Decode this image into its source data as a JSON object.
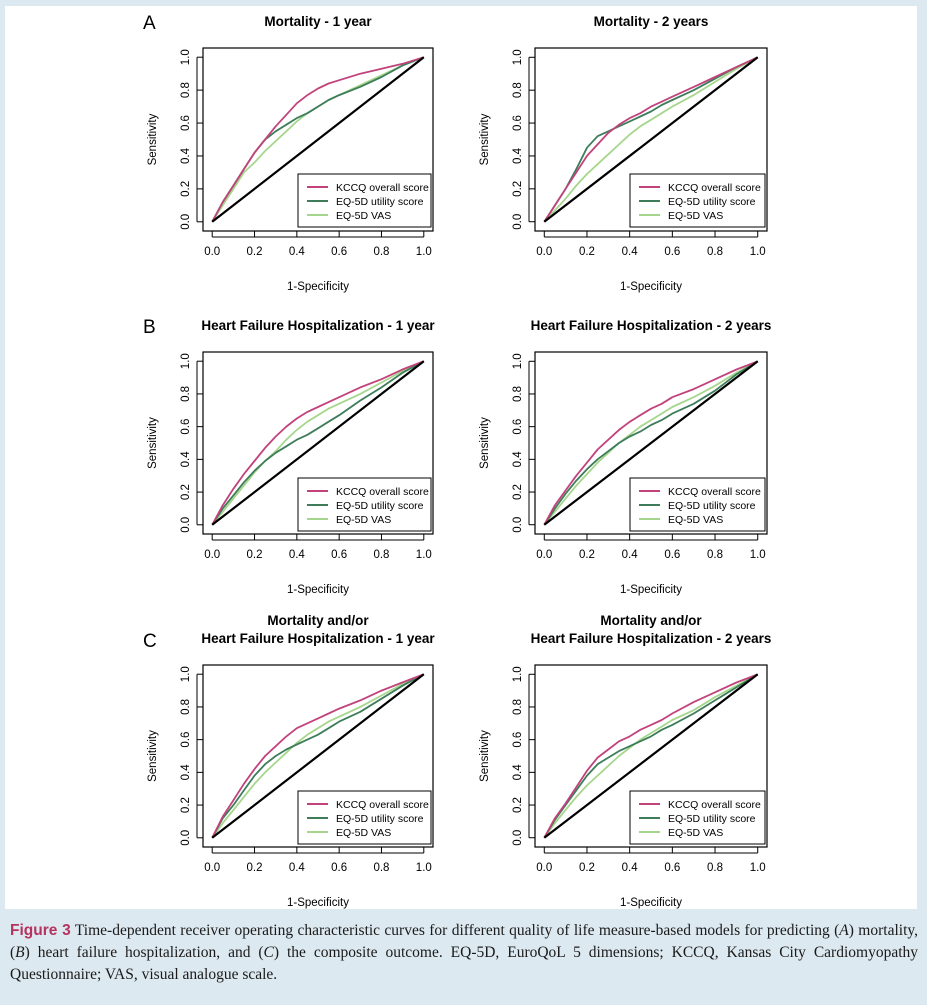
{
  "panel_letters": [
    "A",
    "B",
    "C"
  ],
  "legend_labels": [
    "KCCQ overall score",
    "EQ-5D utility score",
    "EQ-5D VAS"
  ],
  "series_colors": {
    "KCCQ overall score": "#c2427c",
    "EQ-5D utility score": "#3d7d5a",
    "EQ-5D VAS": "#a6d68c",
    "reference": "#000000"
  },
  "chart_data": [
    {
      "type": "line",
      "panel": "A",
      "title": "Mortality - 1 year",
      "xlabel": "1-Specificity",
      "ylabel": "Sensitivity",
      "xlim": [
        0,
        1
      ],
      "ylim": [
        0,
        1
      ],
      "xticks": [
        "0.0",
        "0.2",
        "0.4",
        "0.6",
        "0.8",
        "1.0"
      ],
      "yticks": [
        "0.0",
        "0.2",
        "0.4",
        "0.6",
        "0.8",
        "1.0"
      ],
      "legend_position": "bottom-right",
      "series": [
        {
          "name": "KCCQ overall score",
          "x": [
            0,
            0.05,
            0.1,
            0.15,
            0.2,
            0.25,
            0.3,
            0.35,
            0.4,
            0.45,
            0.5,
            0.55,
            0.6,
            0.7,
            0.8,
            0.9,
            1.0
          ],
          "y": [
            0,
            0.12,
            0.22,
            0.32,
            0.42,
            0.5,
            0.58,
            0.65,
            0.72,
            0.77,
            0.81,
            0.84,
            0.86,
            0.9,
            0.93,
            0.96,
            1.0
          ]
        },
        {
          "name": "EQ-5D utility score",
          "x": [
            0,
            0.05,
            0.1,
            0.15,
            0.2,
            0.25,
            0.3,
            0.35,
            0.4,
            0.45,
            0.5,
            0.55,
            0.6,
            0.7,
            0.8,
            0.9,
            1.0
          ],
          "y": [
            0,
            0.12,
            0.22,
            0.32,
            0.42,
            0.5,
            0.55,
            0.59,
            0.63,
            0.66,
            0.7,
            0.74,
            0.77,
            0.82,
            0.88,
            0.95,
            1.0
          ]
        },
        {
          "name": "EQ-5D VAS",
          "x": [
            0,
            0.05,
            0.1,
            0.15,
            0.2,
            0.25,
            0.3,
            0.35,
            0.4,
            0.45,
            0.5,
            0.55,
            0.6,
            0.7,
            0.8,
            0.9,
            1.0
          ],
          "y": [
            0,
            0.1,
            0.2,
            0.3,
            0.36,
            0.43,
            0.49,
            0.55,
            0.61,
            0.66,
            0.7,
            0.74,
            0.77,
            0.83,
            0.89,
            0.95,
            1.0
          ]
        }
      ]
    },
    {
      "type": "line",
      "panel": "A",
      "title": "Mortality - 2 years",
      "xlabel": "1-Specificity",
      "ylabel": "Sensitivity",
      "xlim": [
        0,
        1
      ],
      "ylim": [
        0,
        1
      ],
      "xticks": [
        "0.0",
        "0.2",
        "0.4",
        "0.6",
        "0.8",
        "1.0"
      ],
      "yticks": [
        "0.0",
        "0.2",
        "0.4",
        "0.6",
        "0.8",
        "1.0"
      ],
      "legend_position": "bottom-right",
      "series": [
        {
          "name": "KCCQ overall score",
          "x": [
            0,
            0.05,
            0.1,
            0.15,
            0.2,
            0.25,
            0.3,
            0.35,
            0.4,
            0.45,
            0.5,
            0.55,
            0.6,
            0.7,
            0.8,
            0.9,
            1.0
          ],
          "y": [
            0,
            0.1,
            0.2,
            0.3,
            0.4,
            0.47,
            0.54,
            0.59,
            0.63,
            0.66,
            0.7,
            0.73,
            0.76,
            0.82,
            0.88,
            0.94,
            1.0
          ]
        },
        {
          "name": "EQ-5D utility score",
          "x": [
            0,
            0.05,
            0.1,
            0.15,
            0.2,
            0.25,
            0.3,
            0.35,
            0.4,
            0.45,
            0.5,
            0.55,
            0.6,
            0.7,
            0.8,
            0.9,
            1.0
          ],
          "y": [
            0,
            0.1,
            0.2,
            0.32,
            0.45,
            0.52,
            0.55,
            0.58,
            0.61,
            0.64,
            0.67,
            0.71,
            0.74,
            0.8,
            0.87,
            0.94,
            1.0
          ]
        },
        {
          "name": "EQ-5D VAS",
          "x": [
            0,
            0.05,
            0.1,
            0.15,
            0.2,
            0.25,
            0.3,
            0.35,
            0.4,
            0.45,
            0.5,
            0.55,
            0.6,
            0.7,
            0.8,
            0.9,
            1.0
          ],
          "y": [
            0,
            0.07,
            0.14,
            0.22,
            0.29,
            0.35,
            0.41,
            0.47,
            0.53,
            0.58,
            0.62,
            0.66,
            0.7,
            0.77,
            0.85,
            0.93,
            1.0
          ]
        }
      ]
    },
    {
      "type": "line",
      "panel": "B",
      "title": "Heart Failure Hospitalization - 1 year",
      "xlabel": "1-Specificity",
      "ylabel": "Sensitivity",
      "xlim": [
        0,
        1
      ],
      "ylim": [
        0,
        1
      ],
      "xticks": [
        "0.0",
        "0.2",
        "0.4",
        "0.6",
        "0.8",
        "1.0"
      ],
      "yticks": [
        "0.0",
        "0.2",
        "0.4",
        "0.6",
        "0.8",
        "1.0"
      ],
      "legend_position": "bottom-right",
      "series": [
        {
          "name": "KCCQ overall score",
          "x": [
            0,
            0.05,
            0.1,
            0.15,
            0.2,
            0.25,
            0.3,
            0.35,
            0.4,
            0.45,
            0.5,
            0.55,
            0.6,
            0.7,
            0.8,
            0.9,
            1.0
          ],
          "y": [
            0,
            0.12,
            0.22,
            0.31,
            0.39,
            0.47,
            0.54,
            0.6,
            0.65,
            0.69,
            0.72,
            0.75,
            0.78,
            0.84,
            0.89,
            0.95,
            1.0
          ]
        },
        {
          "name": "EQ-5D utility score",
          "x": [
            0,
            0.05,
            0.1,
            0.15,
            0.2,
            0.25,
            0.3,
            0.35,
            0.4,
            0.45,
            0.5,
            0.55,
            0.6,
            0.7,
            0.8,
            0.9,
            1.0
          ],
          "y": [
            0,
            0.1,
            0.18,
            0.26,
            0.33,
            0.39,
            0.44,
            0.48,
            0.52,
            0.55,
            0.59,
            0.63,
            0.67,
            0.76,
            0.84,
            0.93,
            1.0
          ]
        },
        {
          "name": "EQ-5D VAS",
          "x": [
            0,
            0.05,
            0.1,
            0.15,
            0.2,
            0.25,
            0.3,
            0.35,
            0.4,
            0.45,
            0.5,
            0.55,
            0.6,
            0.7,
            0.8,
            0.9,
            1.0
          ],
          "y": [
            0,
            0.08,
            0.16,
            0.24,
            0.32,
            0.39,
            0.45,
            0.52,
            0.58,
            0.63,
            0.67,
            0.71,
            0.74,
            0.8,
            0.87,
            0.94,
            1.0
          ]
        }
      ]
    },
    {
      "type": "line",
      "panel": "B",
      "title": "Heart Failure Hospitalization - 2 years",
      "xlabel": "1-Specificity",
      "ylabel": "Sensitivity",
      "xlim": [
        0,
        1
      ],
      "ylim": [
        0,
        1
      ],
      "xticks": [
        "0.0",
        "0.2",
        "0.4",
        "0.6",
        "0.8",
        "1.0"
      ],
      "yticks": [
        "0.0",
        "0.2",
        "0.4",
        "0.6",
        "0.8",
        "1.0"
      ],
      "legend_position": "bottom-right",
      "series": [
        {
          "name": "KCCQ overall score",
          "x": [
            0,
            0.05,
            0.1,
            0.15,
            0.2,
            0.25,
            0.3,
            0.35,
            0.4,
            0.45,
            0.5,
            0.55,
            0.6,
            0.7,
            0.8,
            0.9,
            1.0
          ],
          "y": [
            0,
            0.12,
            0.21,
            0.3,
            0.38,
            0.46,
            0.52,
            0.58,
            0.63,
            0.67,
            0.71,
            0.74,
            0.78,
            0.83,
            0.89,
            0.95,
            1.0
          ]
        },
        {
          "name": "EQ-5D utility score",
          "x": [
            0,
            0.05,
            0.1,
            0.15,
            0.2,
            0.25,
            0.3,
            0.35,
            0.4,
            0.45,
            0.5,
            0.55,
            0.6,
            0.7,
            0.8,
            0.9,
            1.0
          ],
          "y": [
            0,
            0.1,
            0.19,
            0.27,
            0.34,
            0.4,
            0.45,
            0.5,
            0.54,
            0.57,
            0.61,
            0.64,
            0.68,
            0.74,
            0.82,
            0.92,
            1.0
          ]
        },
        {
          "name": "EQ-5D VAS",
          "x": [
            0,
            0.05,
            0.1,
            0.15,
            0.2,
            0.25,
            0.3,
            0.35,
            0.4,
            0.45,
            0.5,
            0.55,
            0.6,
            0.7,
            0.8,
            0.9,
            1.0
          ],
          "y": [
            0,
            0.08,
            0.16,
            0.24,
            0.31,
            0.38,
            0.44,
            0.5,
            0.55,
            0.6,
            0.64,
            0.68,
            0.72,
            0.78,
            0.85,
            0.93,
            1.0
          ]
        }
      ]
    },
    {
      "type": "line",
      "panel": "C",
      "title": "Mortality and/or Heart Failure Hospitalization - 1 year",
      "title_lines": [
        "Mortality and/or",
        "Heart Failure Hospitalization - 1 year"
      ],
      "xlabel": "1-Specificity",
      "ylabel": "Sensitivity",
      "xlim": [
        0,
        1
      ],
      "ylim": [
        0,
        1
      ],
      "xticks": [
        "0.0",
        "0.2",
        "0.4",
        "0.6",
        "0.8",
        "1.0"
      ],
      "yticks": [
        "0.0",
        "0.2",
        "0.4",
        "0.6",
        "0.8",
        "1.0"
      ],
      "legend_position": "bottom-right",
      "series": [
        {
          "name": "KCCQ overall score",
          "x": [
            0,
            0.05,
            0.1,
            0.15,
            0.2,
            0.25,
            0.3,
            0.35,
            0.4,
            0.45,
            0.5,
            0.55,
            0.6,
            0.7,
            0.8,
            0.9,
            1.0
          ],
          "y": [
            0,
            0.13,
            0.23,
            0.33,
            0.42,
            0.5,
            0.56,
            0.62,
            0.67,
            0.7,
            0.73,
            0.76,
            0.79,
            0.84,
            0.9,
            0.95,
            1.0
          ]
        },
        {
          "name": "EQ-5D utility score",
          "x": [
            0,
            0.05,
            0.1,
            0.15,
            0.2,
            0.25,
            0.3,
            0.35,
            0.4,
            0.45,
            0.5,
            0.55,
            0.6,
            0.7,
            0.8,
            0.9,
            1.0
          ],
          "y": [
            0,
            0.12,
            0.2,
            0.29,
            0.38,
            0.45,
            0.5,
            0.54,
            0.57,
            0.6,
            0.63,
            0.67,
            0.71,
            0.77,
            0.85,
            0.93,
            1.0
          ]
        },
        {
          "name": "EQ-5D VAS",
          "x": [
            0,
            0.05,
            0.1,
            0.15,
            0.2,
            0.25,
            0.3,
            0.35,
            0.4,
            0.45,
            0.5,
            0.55,
            0.6,
            0.7,
            0.8,
            0.9,
            1.0
          ],
          "y": [
            0,
            0.09,
            0.17,
            0.25,
            0.33,
            0.4,
            0.46,
            0.52,
            0.58,
            0.63,
            0.67,
            0.71,
            0.74,
            0.8,
            0.87,
            0.94,
            1.0
          ]
        }
      ]
    },
    {
      "type": "line",
      "panel": "C",
      "title": "Mortality and/or Heart Failure Hospitalization - 2 years",
      "title_lines": [
        "Mortality and/or",
        "Heart Failure Hospitalization - 2 years"
      ],
      "xlabel": "1-Specificity",
      "ylabel": "Sensitivity",
      "xlim": [
        0,
        1
      ],
      "ylim": [
        0,
        1
      ],
      "xticks": [
        "0.0",
        "0.2",
        "0.4",
        "0.6",
        "0.8",
        "1.0"
      ],
      "yticks": [
        "0.0",
        "0.2",
        "0.4",
        "0.6",
        "0.8",
        "1.0"
      ],
      "legend_position": "bottom-right",
      "series": [
        {
          "name": "KCCQ overall score",
          "x": [
            0,
            0.05,
            0.1,
            0.15,
            0.2,
            0.25,
            0.3,
            0.35,
            0.4,
            0.45,
            0.5,
            0.55,
            0.6,
            0.7,
            0.8,
            0.9,
            1.0
          ],
          "y": [
            0,
            0.12,
            0.21,
            0.31,
            0.41,
            0.49,
            0.54,
            0.59,
            0.62,
            0.66,
            0.69,
            0.72,
            0.76,
            0.83,
            0.89,
            0.95,
            1.0
          ]
        },
        {
          "name": "EQ-5D utility score",
          "x": [
            0,
            0.05,
            0.1,
            0.15,
            0.2,
            0.25,
            0.3,
            0.35,
            0.4,
            0.45,
            0.5,
            0.55,
            0.6,
            0.7,
            0.8,
            0.9,
            1.0
          ],
          "y": [
            0,
            0.11,
            0.2,
            0.29,
            0.38,
            0.45,
            0.49,
            0.53,
            0.56,
            0.59,
            0.62,
            0.66,
            0.69,
            0.76,
            0.84,
            0.92,
            1.0
          ]
        },
        {
          "name": "EQ-5D VAS",
          "x": [
            0,
            0.05,
            0.1,
            0.15,
            0.2,
            0.25,
            0.3,
            0.35,
            0.4,
            0.45,
            0.5,
            0.55,
            0.6,
            0.7,
            0.8,
            0.9,
            1.0
          ],
          "y": [
            0,
            0.09,
            0.17,
            0.25,
            0.32,
            0.38,
            0.44,
            0.5,
            0.55,
            0.6,
            0.64,
            0.68,
            0.72,
            0.78,
            0.86,
            0.93,
            1.0
          ]
        }
      ]
    }
  ],
  "caption": {
    "label": "Figure 3",
    "text_1": " Time-dependent receiver operating characteristic curves for different quality of life measure-based models for predicting (",
    "a": "A",
    "text_2": ") mortality, (",
    "b": "B",
    "text_3": ") heart failure hospitalization, and (",
    "c": "C",
    "text_4": ") the composite outcome. EQ-5D, EuroQoL 5 dimensions; KCCQ, Kansas City Cardiomyopathy Questionnaire; VAS, visual analogue scale."
  }
}
